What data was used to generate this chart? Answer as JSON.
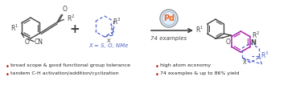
{
  "background_color": "#ffffff",
  "border_color": "#bbbbbb",
  "bullet_color": "#cc0000",
  "bullet_points_left": [
    "broad scope & good functional group tolerance",
    "tandem C-H activation/addition/cyclization"
  ],
  "bullet_points_right": [
    "high atom economy",
    "74 examples & up to 86% yield"
  ],
  "arrow_label": "74 examples",
  "pd_label": "Pd",
  "x_label": "X = S, O, NMe",
  "x_label_color": "#5566cc",
  "pd_circle_color": "#ee6622",
  "pd_bg_color": "#ddeeff",
  "pd_ring_color": "#aabbcc",
  "scheme_bond_color": "#444444",
  "purple_bond_color": "#aa22aa",
  "blue_dashed_color": "#5566cc",
  "text_color": "#222222"
}
